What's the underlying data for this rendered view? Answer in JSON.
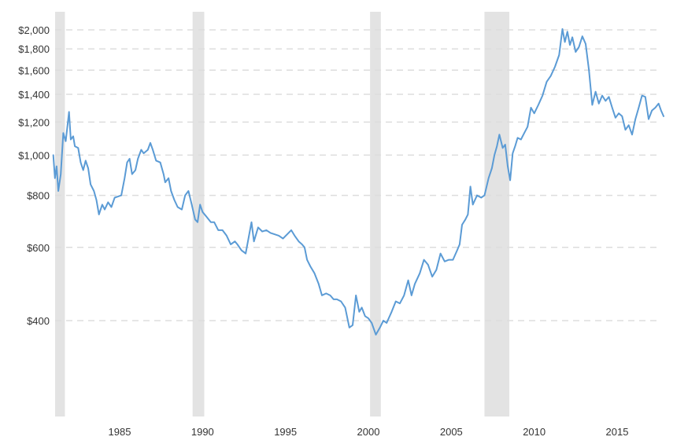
{
  "chart_data": {
    "type": "line",
    "title": "",
    "xlabel": "",
    "ylabel": "",
    "y_scale": "log",
    "xlim": [
      1981.0,
      2017.8
    ],
    "ylim": [
      260,
      2200
    ],
    "grid": "horizontal dashed",
    "legend": "none",
    "y_ticks": [
      {
        "value": 400,
        "label": "$400"
      },
      {
        "value": 600,
        "label": "$600"
      },
      {
        "value": 800,
        "label": "$800"
      },
      {
        "value": 1000,
        "label": "$1,000"
      },
      {
        "value": 1200,
        "label": "$1,200"
      },
      {
        "value": 1400,
        "label": "$1,400"
      },
      {
        "value": 1600,
        "label": "$1,600"
      },
      {
        "value": 1800,
        "label": "$1,800"
      },
      {
        "value": 2000,
        "label": "$2,000"
      }
    ],
    "x_ticks": [
      {
        "value": 1985,
        "label": "1985"
      },
      {
        "value": 1990,
        "label": "1990"
      },
      {
        "value": 1995,
        "label": "1995"
      },
      {
        "value": 2000,
        "label": "2000"
      },
      {
        "value": 2005,
        "label": "2005"
      },
      {
        "value": 2010,
        "label": "2010"
      },
      {
        "value": 2015,
        "label": "2015"
      }
    ],
    "recession_bands": [
      {
        "start": 1981.0,
        "end": 1981.7
      },
      {
        "start": 1989.4,
        "end": 1990.1
      },
      {
        "start": 2000.1,
        "end": 2000.75
      },
      {
        "start": 2007.0,
        "end": 2008.5
      }
    ],
    "series": [
      {
        "color": "#5b9bd5",
        "points": [
          [
            1981.0,
            1000
          ],
          [
            1981.1,
            880
          ],
          [
            1981.2,
            940
          ],
          [
            1981.3,
            820
          ],
          [
            1981.45,
            900
          ],
          [
            1981.6,
            1130
          ],
          [
            1981.75,
            1080
          ],
          [
            1981.95,
            1270
          ],
          [
            1982.05,
            1090
          ],
          [
            1982.2,
            1110
          ],
          [
            1982.3,
            1050
          ],
          [
            1982.5,
            1040
          ],
          [
            1982.65,
            960
          ],
          [
            1982.8,
            920
          ],
          [
            1982.95,
            970
          ],
          [
            1983.1,
            930
          ],
          [
            1983.25,
            850
          ],
          [
            1983.45,
            820
          ],
          [
            1983.6,
            780
          ],
          [
            1983.75,
            720
          ],
          [
            1983.95,
            760
          ],
          [
            1984.1,
            740
          ],
          [
            1984.3,
            770
          ],
          [
            1984.5,
            750
          ],
          [
            1984.7,
            790
          ],
          [
            1984.9,
            795
          ],
          [
            1985.1,
            800
          ],
          [
            1985.3,
            880
          ],
          [
            1985.45,
            960
          ],
          [
            1985.6,
            980
          ],
          [
            1985.75,
            900
          ],
          [
            1985.95,
            920
          ],
          [
            1986.1,
            980
          ],
          [
            1986.3,
            1030
          ],
          [
            1986.45,
            1010
          ],
          [
            1986.7,
            1030
          ],
          [
            1986.85,
            1070
          ],
          [
            1987.0,
            1030
          ],
          [
            1987.2,
            970
          ],
          [
            1987.45,
            960
          ],
          [
            1987.65,
            900
          ],
          [
            1987.75,
            860
          ],
          [
            1987.95,
            880
          ],
          [
            1988.1,
            820
          ],
          [
            1988.3,
            780
          ],
          [
            1988.5,
            750
          ],
          [
            1988.75,
            740
          ],
          [
            1988.95,
            800
          ],
          [
            1989.15,
            820
          ],
          [
            1989.35,
            760
          ],
          [
            1989.55,
            700
          ],
          [
            1989.7,
            690
          ],
          [
            1989.85,
            760
          ],
          [
            1990.0,
            730
          ],
          [
            1990.25,
            710
          ],
          [
            1990.5,
            690
          ],
          [
            1990.7,
            690
          ],
          [
            1990.95,
            660
          ],
          [
            1991.2,
            660
          ],
          [
            1991.45,
            640
          ],
          [
            1991.7,
            610
          ],
          [
            1991.95,
            620
          ],
          [
            1992.1,
            610
          ],
          [
            1992.35,
            590
          ],
          [
            1992.6,
            580
          ],
          [
            1992.8,
            640
          ],
          [
            1992.95,
            690
          ],
          [
            1993.1,
            620
          ],
          [
            1993.35,
            670
          ],
          [
            1993.6,
            655
          ],
          [
            1993.85,
            660
          ],
          [
            1994.1,
            650
          ],
          [
            1994.35,
            645
          ],
          [
            1994.6,
            640
          ],
          [
            1994.85,
            630
          ],
          [
            1995.1,
            645
          ],
          [
            1995.35,
            660
          ],
          [
            1995.55,
            640
          ],
          [
            1995.8,
            620
          ],
          [
            1996.0,
            610
          ],
          [
            1996.15,
            600
          ],
          [
            1996.3,
            560
          ],
          [
            1996.5,
            540
          ],
          [
            1996.75,
            520
          ],
          [
            1997.0,
            490
          ],
          [
            1997.2,
            460
          ],
          [
            1997.45,
            465
          ],
          [
            1997.7,
            460
          ],
          [
            1997.9,
            450
          ],
          [
            1998.1,
            450
          ],
          [
            1998.35,
            445
          ],
          [
            1998.6,
            430
          ],
          [
            1998.85,
            385
          ],
          [
            1999.05,
            390
          ],
          [
            1999.25,
            460
          ],
          [
            1999.45,
            420
          ],
          [
            1999.6,
            430
          ],
          [
            1999.8,
            410
          ],
          [
            2000.0,
            405
          ],
          [
            2000.2,
            395
          ],
          [
            2000.45,
            370
          ],
          [
            2000.7,
            385
          ],
          [
            2000.9,
            400
          ],
          [
            2001.1,
            395
          ],
          [
            2001.4,
            420
          ],
          [
            2001.65,
            445
          ],
          [
            2001.9,
            440
          ],
          [
            2002.15,
            460
          ],
          [
            2002.4,
            500
          ],
          [
            2002.6,
            460
          ],
          [
            2002.8,
            490
          ],
          [
            2003.1,
            520
          ],
          [
            2003.35,
            560
          ],
          [
            2003.6,
            545
          ],
          [
            2003.85,
            510
          ],
          [
            2004.1,
            530
          ],
          [
            2004.35,
            580
          ],
          [
            2004.6,
            555
          ],
          [
            2004.85,
            560
          ],
          [
            2005.1,
            560
          ],
          [
            2005.35,
            590
          ],
          [
            2005.5,
            610
          ],
          [
            2005.65,
            680
          ],
          [
            2005.85,
            700
          ],
          [
            2006.0,
            720
          ],
          [
            2006.15,
            840
          ],
          [
            2006.3,
            760
          ],
          [
            2006.55,
            800
          ],
          [
            2006.8,
            790
          ],
          [
            2007.0,
            800
          ],
          [
            2007.25,
            880
          ],
          [
            2007.45,
            930
          ],
          [
            2007.6,
            1000
          ],
          [
            2007.75,
            1050
          ],
          [
            2007.9,
            1120
          ],
          [
            2008.1,
            1040
          ],
          [
            2008.25,
            1060
          ],
          [
            2008.4,
            940
          ],
          [
            2008.55,
            870
          ],
          [
            2008.7,
            1010
          ],
          [
            2008.85,
            1050
          ],
          [
            2009.0,
            1100
          ],
          [
            2009.2,
            1090
          ],
          [
            2009.4,
            1130
          ],
          [
            2009.6,
            1170
          ],
          [
            2009.8,
            1300
          ],
          [
            2010.0,
            1260
          ],
          [
            2010.25,
            1320
          ],
          [
            2010.5,
            1390
          ],
          [
            2010.75,
            1500
          ],
          [
            2011.0,
            1550
          ],
          [
            2011.25,
            1630
          ],
          [
            2011.5,
            1740
          ],
          [
            2011.7,
            2010
          ],
          [
            2011.85,
            1870
          ],
          [
            2012.0,
            1980
          ],
          [
            2012.15,
            1840
          ],
          [
            2012.3,
            1920
          ],
          [
            2012.5,
            1770
          ],
          [
            2012.7,
            1820
          ],
          [
            2012.9,
            1930
          ],
          [
            2013.1,
            1850
          ],
          [
            2013.3,
            1600
          ],
          [
            2013.5,
            1320
          ],
          [
            2013.7,
            1420
          ],
          [
            2013.9,
            1330
          ],
          [
            2014.1,
            1390
          ],
          [
            2014.3,
            1350
          ],
          [
            2014.5,
            1380
          ],
          [
            2014.7,
            1300
          ],
          [
            2014.9,
            1230
          ],
          [
            2015.1,
            1260
          ],
          [
            2015.3,
            1240
          ],
          [
            2015.5,
            1150
          ],
          [
            2015.7,
            1180
          ],
          [
            2015.9,
            1120
          ],
          [
            2016.1,
            1220
          ],
          [
            2016.3,
            1300
          ],
          [
            2016.5,
            1390
          ],
          [
            2016.7,
            1380
          ],
          [
            2016.9,
            1220
          ],
          [
            2017.1,
            1280
          ],
          [
            2017.3,
            1300
          ],
          [
            2017.5,
            1330
          ],
          [
            2017.65,
            1280
          ],
          [
            2017.8,
            1240
          ]
        ]
      }
    ]
  }
}
